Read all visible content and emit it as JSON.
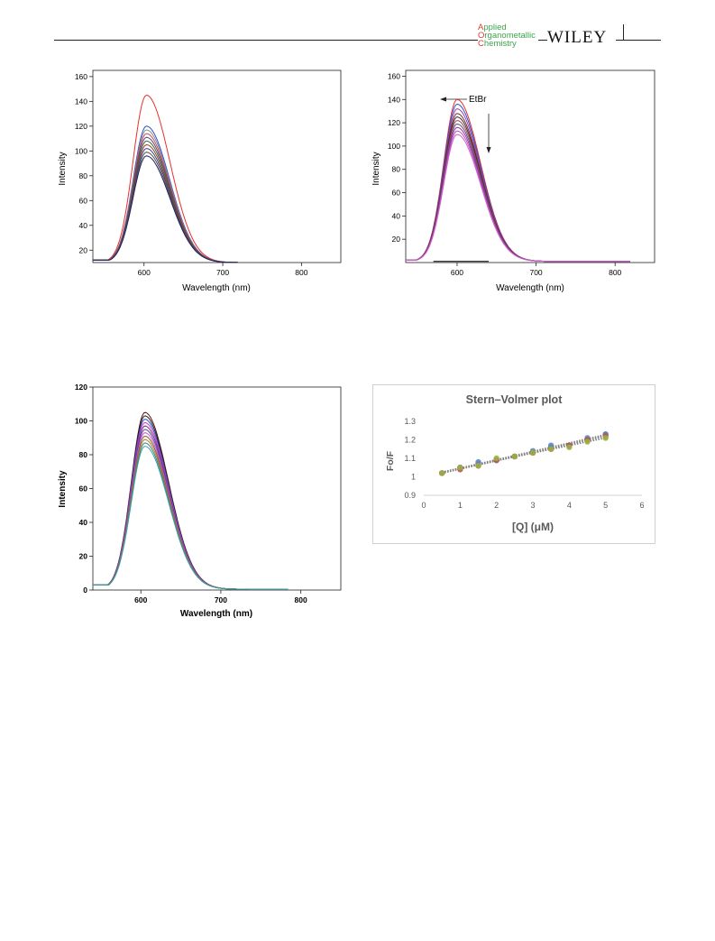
{
  "header": {
    "journal_lines": [
      {
        "cap": "A",
        "rest": "pplied"
      },
      {
        "cap": "O",
        "rest": "rganometallic"
      },
      {
        "cap": "C",
        "rest": "hemistry"
      }
    ],
    "publisher": "WILEY",
    "logo_color": "#3aa64a",
    "logo_cap_color": "#e03a2f"
  },
  "chart_data": [
    {
      "type": "line",
      "title": "",
      "xlabel": "Wavelength (nm)",
      "ylabel": "Intensity",
      "xlim": [
        535,
        850
      ],
      "ylim": [
        10,
        165
      ],
      "xticks": [
        600,
        700,
        800
      ],
      "yticks": [
        20,
        40,
        60,
        80,
        100,
        120,
        140,
        160
      ],
      "grid": false,
      "curve_shape": {
        "start_x": 535,
        "start_y": 12,
        "end_x": 720,
        "tail_y": 10
      },
      "series": [
        {
          "peak_x": 603,
          "peak_y": 145,
          "color": "#e8302a"
        },
        {
          "peak_x": 603,
          "peak_y": 120,
          "color": "#2a4fd6"
        },
        {
          "peak_x": 603,
          "peak_y": 117,
          "color": "#8a8a8a"
        },
        {
          "peak_x": 603,
          "peak_y": 114,
          "color": "#c05050"
        },
        {
          "peak_x": 603,
          "peak_y": 111,
          "color": "#6a3a8a"
        },
        {
          "peak_x": 603,
          "peak_y": 108,
          "color": "#3a6a3a"
        },
        {
          "peak_x": 603,
          "peak_y": 105,
          "color": "#904020"
        },
        {
          "peak_x": 603,
          "peak_y": 102,
          "color": "#404080"
        },
        {
          "peak_x": 603,
          "peak_y": 99,
          "color": "#505050"
        },
        {
          "peak_x": 603,
          "peak_y": 96,
          "color": "#202060"
        }
      ]
    },
    {
      "type": "line",
      "title": "",
      "xlabel": "Wavelength (nm)",
      "ylabel": "Intensity",
      "xlim": [
        535,
        850
      ],
      "ylim": [
        0,
        165
      ],
      "xticks": [
        600,
        700,
        800
      ],
      "yticks": [
        20,
        40,
        60,
        80,
        100,
        120,
        140,
        160
      ],
      "grid": false,
      "annotation": "EtBr",
      "curve_shape": {
        "start_x": 535,
        "start_y": 2,
        "end_x": 820,
        "tail_y": 1
      },
      "series": [
        {
          "peak_x": 600,
          "peak_y": 140,
          "color": "#e8302a"
        },
        {
          "peak_x": 600,
          "peak_y": 136,
          "color": "#3050d0"
        },
        {
          "peak_x": 600,
          "peak_y": 132,
          "color": "#9a40b0"
        },
        {
          "peak_x": 600,
          "peak_y": 128,
          "color": "#7a3030"
        },
        {
          "peak_x": 600,
          "peak_y": 125,
          "color": "#303030"
        },
        {
          "peak_x": 600,
          "peak_y": 122,
          "color": "#b04040"
        },
        {
          "peak_x": 600,
          "peak_y": 119,
          "color": "#5050a0"
        },
        {
          "peak_x": 600,
          "peak_y": 116,
          "color": "#a030a0"
        },
        {
          "peak_x": 600,
          "peak_y": 113,
          "color": "#c050c0"
        },
        {
          "peak_x": 600,
          "peak_y": 110,
          "color": "#d060d0"
        }
      ],
      "baseline": {
        "y": 1,
        "x_from": 570,
        "x_to": 640,
        "color": "#202020"
      }
    },
    {
      "type": "line",
      "title": "",
      "xlabel": "Wavelength (nm)",
      "ylabel": "Intensity",
      "xlim": [
        540,
        850
      ],
      "ylim": [
        0,
        120
      ],
      "xticks": [
        600,
        700,
        800
      ],
      "yticks": [
        0,
        20,
        40,
        60,
        80,
        100,
        120
      ],
      "grid": false,
      "curve_shape": {
        "start_x": 540,
        "start_y": 3,
        "end_x": 785,
        "tail_y": 0.5
      },
      "series": [
        {
          "peak_x": 605,
          "peak_y": 105,
          "color": "#5a1010"
        },
        {
          "peak_x": 605,
          "peak_y": 103,
          "color": "#202020"
        },
        {
          "peak_x": 605,
          "peak_y": 101,
          "color": "#3050d0"
        },
        {
          "peak_x": 605,
          "peak_y": 99,
          "color": "#c040c0"
        },
        {
          "peak_x": 605,
          "peak_y": 97,
          "color": "#8a2a8a"
        },
        {
          "peak_x": 605,
          "peak_y": 95,
          "color": "#5050a0"
        },
        {
          "peak_x": 605,
          "peak_y": 93,
          "color": "#e050e0"
        },
        {
          "peak_x": 605,
          "peak_y": 91,
          "color": "#6a6a2a"
        },
        {
          "peak_x": 605,
          "peak_y": 89,
          "color": "#d07030"
        },
        {
          "peak_x": 605,
          "peak_y": 87,
          "color": "#2a8a8a"
        },
        {
          "peak_x": 605,
          "peak_y": 85,
          "color": "#3aa0a0"
        }
      ]
    },
    {
      "type": "scatter",
      "title": "Stern–Volmer plot",
      "xlabel": "[Q] (μM)",
      "ylabel": "Fo/F",
      "xlim": [
        0,
        6
      ],
      "ylim": [
        0.9,
        1.3
      ],
      "xticks": [
        0,
        1,
        2,
        3,
        4,
        5,
        6
      ],
      "ytick_labels": [
        "0.9",
        "1",
        "1.1",
        "1.2",
        "1.3"
      ],
      "yticks": [
        0.9,
        1.0,
        1.1,
        1.2,
        1.3
      ],
      "grid": false,
      "series": [
        {
          "color": "#7a5aa8",
          "x": [
            0.5,
            1,
            1.5,
            2,
            2.5,
            3,
            3.5,
            4,
            4.5,
            5
          ],
          "y": [
            1.02,
            1.05,
            1.07,
            1.09,
            1.11,
            1.13,
            1.16,
            1.17,
            1.2,
            1.23
          ]
        },
        {
          "color": "#5a8ac0",
          "x": [
            0.5,
            1,
            1.5,
            2,
            2.5,
            3,
            3.5,
            4,
            4.5,
            5
          ],
          "y": [
            1.02,
            1.05,
            1.08,
            1.09,
            1.11,
            1.14,
            1.17,
            1.17,
            1.21,
            1.23
          ]
        },
        {
          "color": "#c05050",
          "x": [
            0.5,
            1,
            1.5,
            2,
            2.5,
            3,
            3.5,
            4,
            4.5,
            5
          ],
          "y": [
            1.02,
            1.04,
            1.06,
            1.09,
            1.11,
            1.13,
            1.15,
            1.17,
            1.2,
            1.22
          ]
        },
        {
          "color": "#9ab040",
          "x": [
            0.5,
            1,
            1.5,
            2,
            2.5,
            3,
            3.5,
            4,
            4.5,
            5
          ],
          "y": [
            1.02,
            1.05,
            1.06,
            1.1,
            1.11,
            1.13,
            1.15,
            1.16,
            1.19,
            1.21
          ]
        }
      ],
      "trendline_color": "#808080"
    }
  ]
}
